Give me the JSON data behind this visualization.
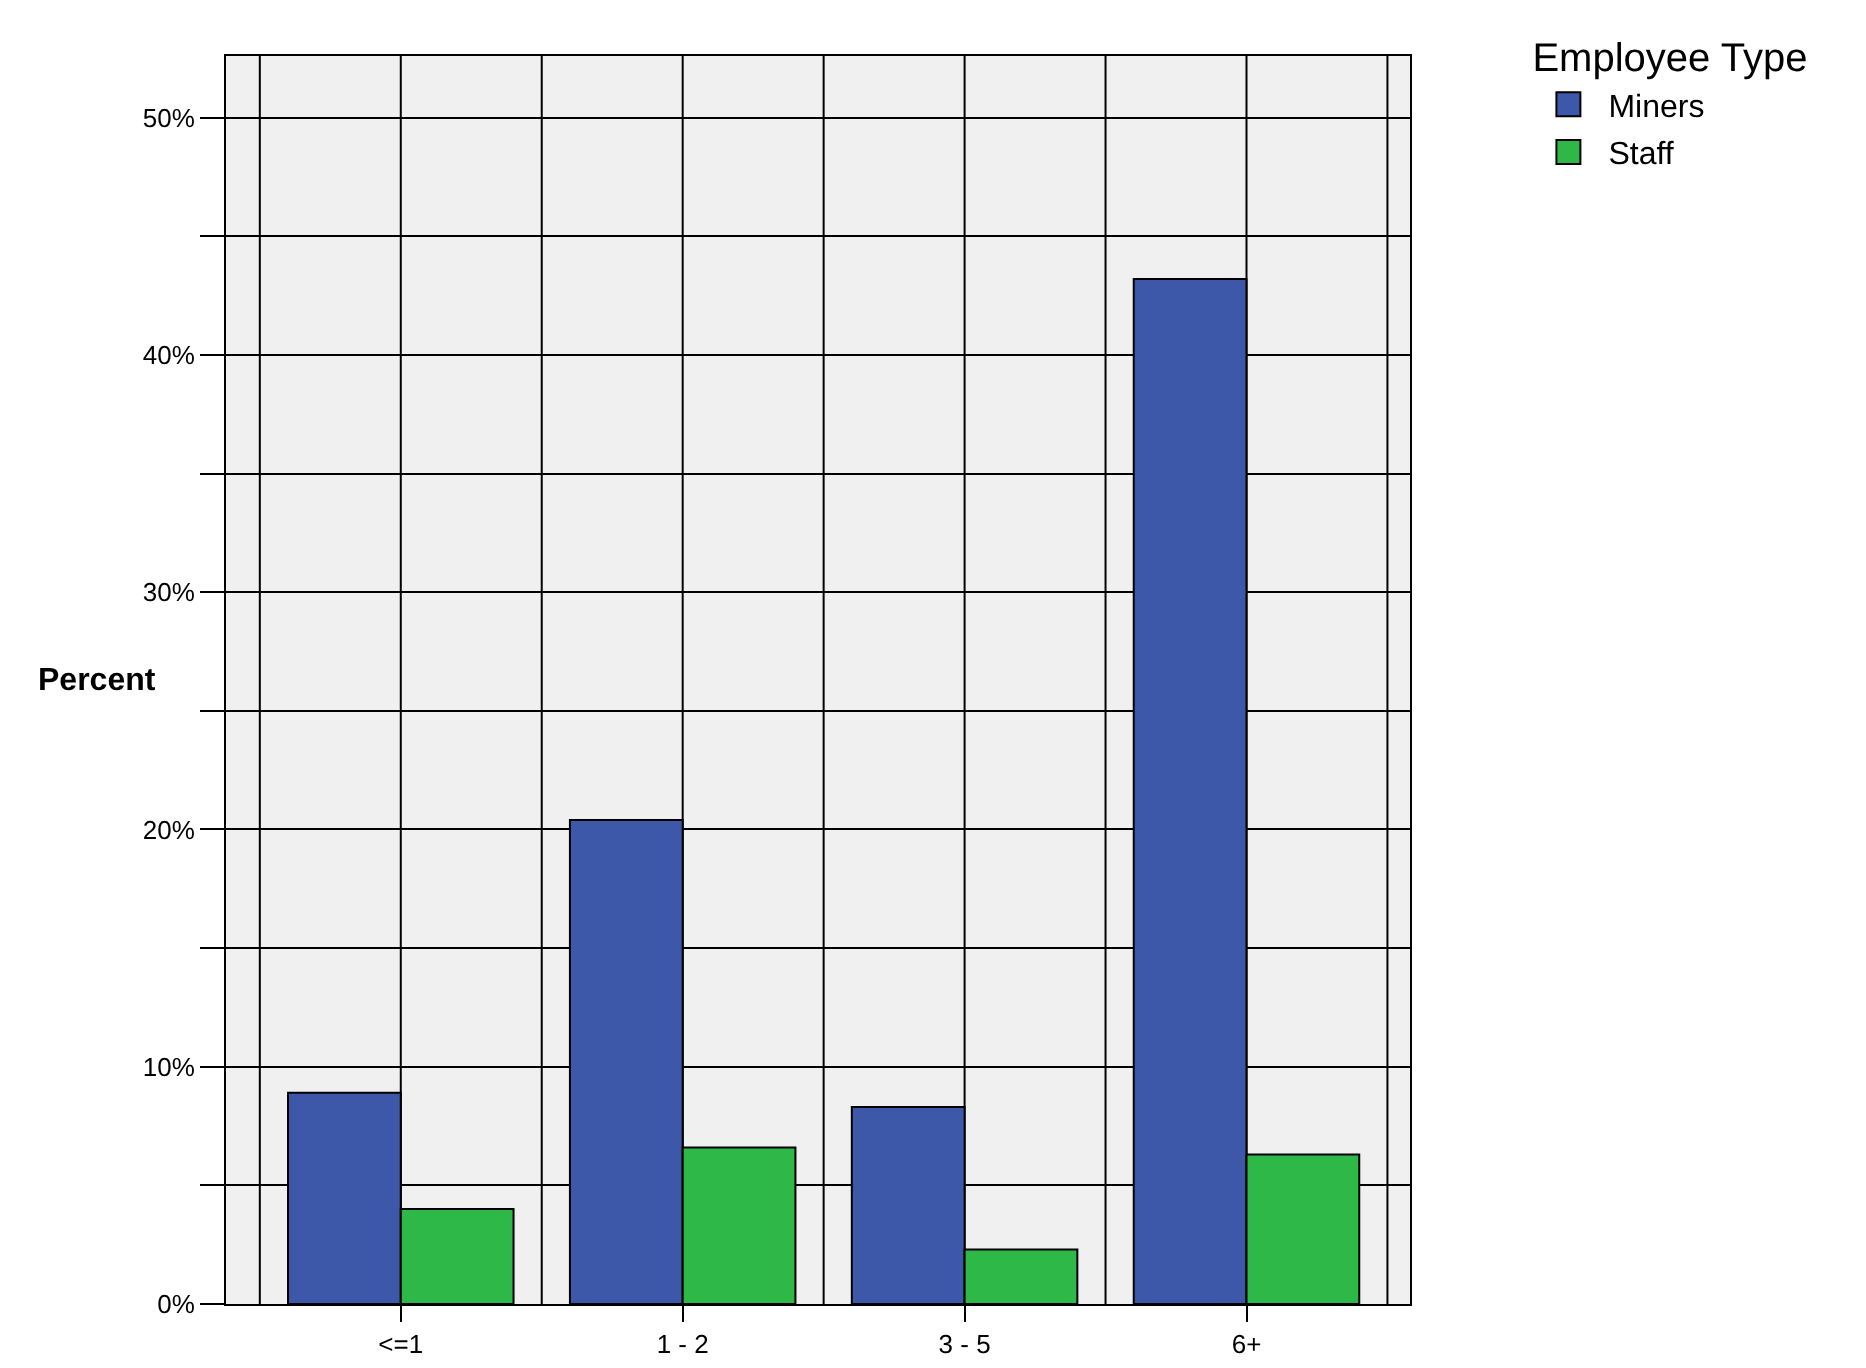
{
  "chart_data": {
    "type": "bar",
    "ylabel": "Percent",
    "legend_title": "Employee Type",
    "categories": [
      "<=1",
      "1 - 2",
      "3 - 5",
      "6+"
    ],
    "series": [
      {
        "name": "Miners",
        "color": "#3d58a9",
        "values": [
          8.9,
          20.4,
          8.3,
          43.2
        ]
      },
      {
        "name": "Staff",
        "color": "#2eb848",
        "values": [
          4.0,
          6.6,
          2.3,
          6.3
        ]
      }
    ],
    "ylim": [
      0,
      52.6
    ],
    "yticks": [
      {
        "value": 0,
        "label": "0%"
      },
      {
        "value": 5,
        "label": null
      },
      {
        "value": 10,
        "label": "10%"
      },
      {
        "value": 15,
        "label": null
      },
      {
        "value": 20,
        "label": "20%"
      },
      {
        "value": 25,
        "label": null
      },
      {
        "value": 30,
        "label": "30%"
      },
      {
        "value": 35,
        "label": null
      },
      {
        "value": 40,
        "label": "40%"
      },
      {
        "value": 45,
        "label": null
      },
      {
        "value": 50,
        "label": "50%"
      }
    ],
    "grid": true,
    "legend": "top right"
  }
}
